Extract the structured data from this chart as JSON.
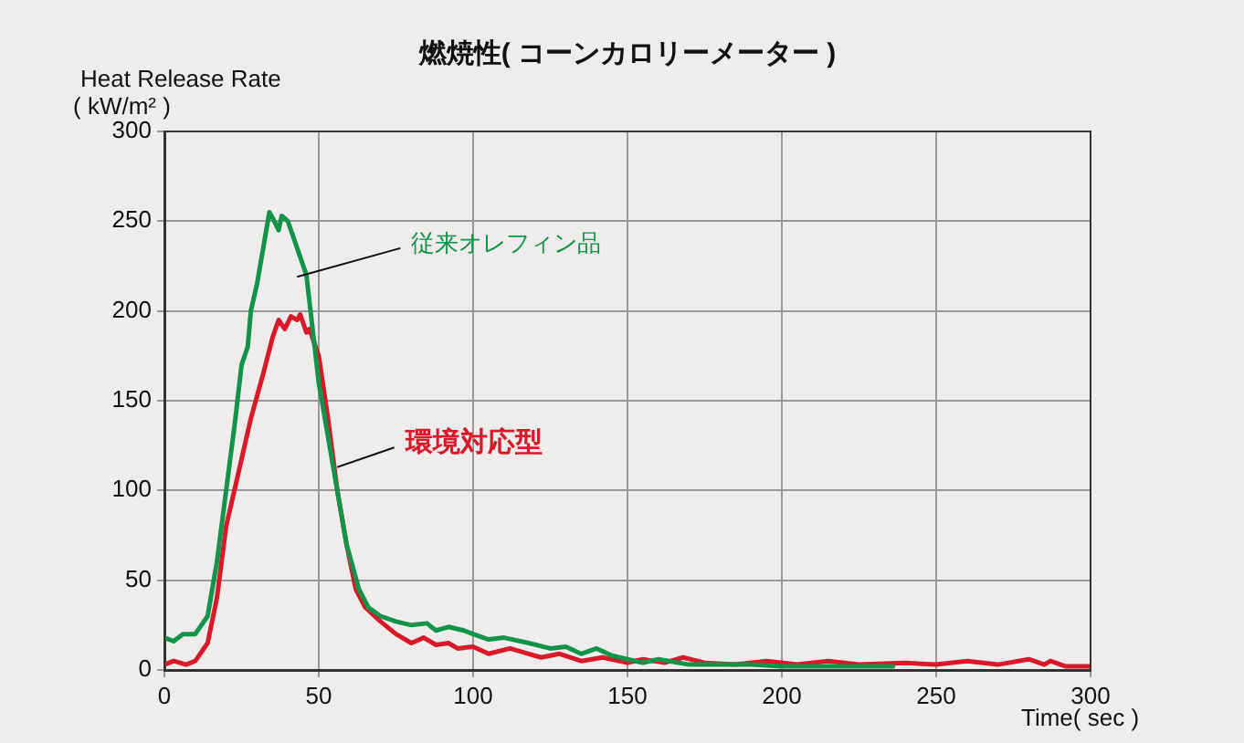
{
  "chart_data": {
    "type": "line",
    "title": "燃焼性( コーンカロリーメーター )",
    "ylabel": "Heat Release Rate\n( kW/m² )",
    "xlabel": "Time( sec )",
    "xlim": [
      0,
      300
    ],
    "xticks": [
      0,
      50,
      100,
      150,
      200,
      250,
      300
    ],
    "ylim": [
      0,
      300
    ],
    "yticks": [
      0,
      50,
      100,
      150,
      200,
      250,
      300
    ],
    "grid": true,
    "legend": false,
    "marker": "none",
    "line_style": "solid",
    "series": [
      {
        "name": "従来オレフィン品",
        "color": "#13924a",
        "x": [
          0,
          3,
          6,
          10,
          14,
          17,
          20,
          23,
          25,
          27,
          28,
          30,
          32,
          34,
          35,
          37,
          38,
          40,
          42,
          44,
          46,
          48,
          50,
          53,
          56,
          59,
          63,
          66,
          70,
          75,
          80,
          85,
          88,
          92,
          97,
          100,
          105,
          110,
          118,
          125,
          130,
          135,
          140,
          145,
          150,
          155,
          160,
          170,
          180,
          190,
          200,
          220,
          236
        ],
        "values": [
          18,
          16,
          20,
          20,
          30,
          60,
          100,
          140,
          170,
          180,
          200,
          215,
          235,
          255,
          252,
          245,
          253,
          250,
          240,
          230,
          220,
          190,
          160,
          130,
          100,
          70,
          45,
          35,
          30,
          27,
          25,
          26,
          22,
          24,
          22,
          20,
          17,
          18,
          15,
          12,
          13,
          9,
          12,
          8,
          6,
          4,
          6,
          3,
          3,
          3,
          2,
          2,
          2
        ]
      },
      {
        "name": "環境対応型",
        "color": "#d7192a",
        "x": [
          0,
          3,
          7,
          10,
          14,
          17,
          20,
          24,
          28,
          32,
          35,
          37,
          39,
          41,
          43,
          44,
          46,
          47,
          50,
          53,
          56,
          59,
          62,
          65,
          70,
          75,
          80,
          84,
          88,
          92,
          95,
          100,
          105,
          112,
          118,
          122,
          128,
          135,
          142,
          150,
          155,
          162,
          168,
          175,
          185,
          195,
          205,
          215,
          225,
          240,
          250,
          260,
          270,
          280,
          285,
          287,
          292,
          300
        ],
        "values": [
          3,
          5,
          3,
          5,
          15,
          40,
          80,
          110,
          140,
          165,
          185,
          195,
          190,
          197,
          195,
          198,
          188,
          190,
          175,
          140,
          100,
          70,
          45,
          35,
          27,
          20,
          15,
          18,
          14,
          15,
          12,
          13,
          9,
          12,
          9,
          7,
          9,
          5,
          7,
          4,
          6,
          4,
          7,
          4,
          3,
          5,
          3,
          5,
          3,
          4,
          3,
          5,
          3,
          6,
          3,
          5,
          2,
          2
        ]
      }
    ]
  }
}
